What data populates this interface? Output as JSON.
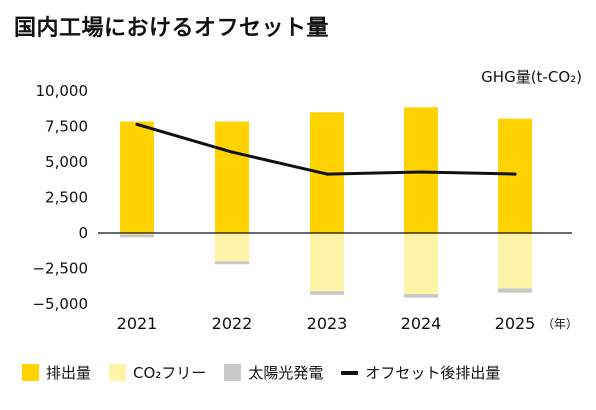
{
  "title": "国内工場におけるオフセット量",
  "unit_label": "GHG量(t-CO₂)",
  "year_unit": "（年）",
  "colors": {
    "emissions": "#FFD200",
    "co2_free": "#FFF3A8",
    "solar": "#C8C8C8",
    "offset_line": "#111111",
    "zero_line": "#111111"
  },
  "legend": [
    {
      "label": "排出量",
      "type": "box",
      "color_key": "emissions"
    },
    {
      "label": "CO₂フリー",
      "type": "box",
      "color_key": "co2_free"
    },
    {
      "label": "太陽光発電",
      "type": "box",
      "color_key": "solar"
    },
    {
      "label": "オフセット後排出量",
      "type": "line",
      "color_key": "offset_line"
    }
  ],
  "chart_data": {
    "type": "bar",
    "categories": [
      "2021",
      "2022",
      "2023",
      "2024",
      "2025"
    ],
    "yticks": [
      10000,
      7500,
      5000,
      2500,
      0,
      -2500,
      -5000
    ],
    "ytick_labels": [
      "10,000",
      "7,500",
      "5,000",
      "2,500",
      "0",
      "−2,500",
      "−5,000"
    ],
    "ylim": [
      -5000,
      10000
    ],
    "grid": false,
    "legend_position": "bottom",
    "series": [
      {
        "name": "排出量",
        "kind": "bar",
        "color_key": "emissions",
        "values": [
          7850,
          7850,
          8500,
          8850,
          8050
        ]
      },
      {
        "name": "CO₂フリー",
        "kind": "bar",
        "color_key": "co2_free",
        "values": [
          -100,
          -2000,
          -4100,
          -4300,
          -3900
        ]
      },
      {
        "name": "太陽光発電",
        "kind": "bar",
        "color_key": "solar",
        "values": [
          -200,
          -200,
          -250,
          -250,
          -300
        ]
      },
      {
        "name": "オフセット後排出量",
        "kind": "line",
        "color_key": "offset_line",
        "values": [
          7650,
          5700,
          4150,
          4300,
          4150
        ]
      }
    ]
  }
}
